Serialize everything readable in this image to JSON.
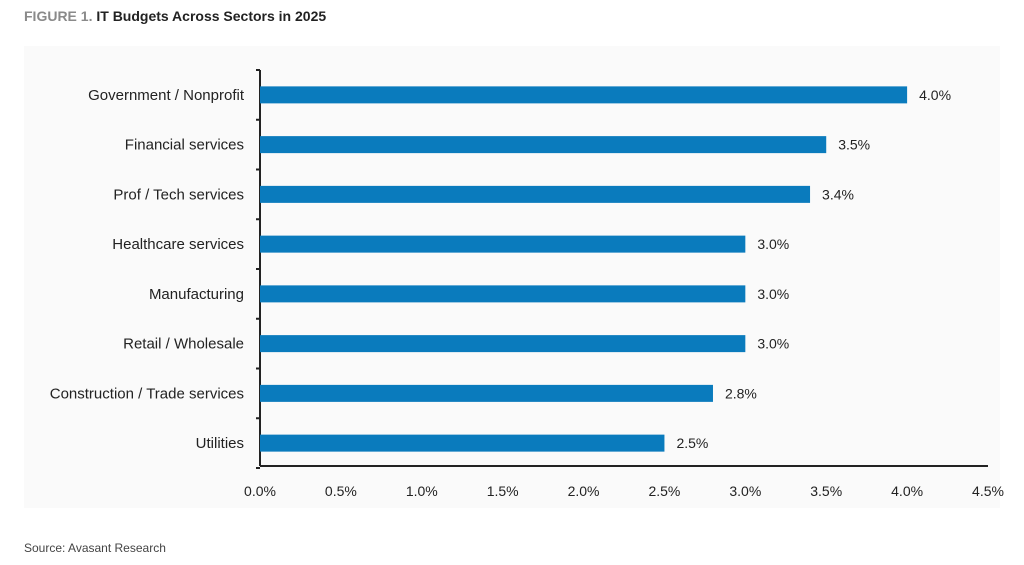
{
  "figure": {
    "label": "FIGURE 1.",
    "title": "IT Budgets Across Sectors in 2025",
    "source": "Source: Avasant Research"
  },
  "chart_data": {
    "type": "bar",
    "orientation": "horizontal",
    "title": "IT Budgets Across Sectors in 2025",
    "xlabel": "",
    "ylabel": "",
    "categories": [
      "Government / Nonprofit",
      "Financial services",
      "Prof / Tech services",
      "Healthcare services",
      "Manufacturing",
      "Retail / Wholesale",
      "Construction / Trade services",
      "Utilities"
    ],
    "values": [
      4.0,
      3.5,
      3.4,
      3.0,
      3.0,
      3.0,
      2.8,
      2.5
    ],
    "value_labels": [
      "4.0%",
      "3.5%",
      "3.4%",
      "3.0%",
      "3.0%",
      "3.0%",
      "2.8%",
      "2.5%"
    ],
    "xlim": [
      0,
      4.5
    ],
    "xticks": [
      0,
      0.5,
      1.0,
      1.5,
      2.0,
      2.5,
      3.0,
      3.5,
      4.0,
      4.5
    ],
    "xtick_labels": [
      "0.0%",
      "0.5%",
      "1.0%",
      "1.5%",
      "2.0%",
      "2.5%",
      "3.0%",
      "3.5%",
      "4.0%",
      "4.5%"
    ],
    "grid": false,
    "legend": "none",
    "bar_color": "#0a7bbd"
  }
}
